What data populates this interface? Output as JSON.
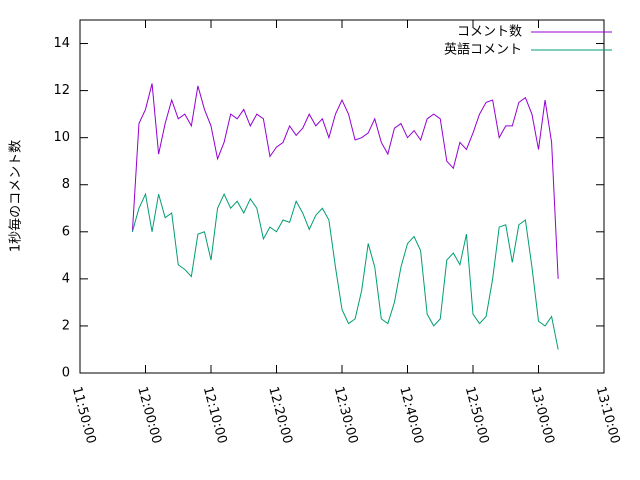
{
  "chart_data": {
    "type": "line",
    "y_label": "1秒毎のコメント数",
    "x": [
      "11:58:00",
      "11:59:00",
      "12:00:00",
      "12:01:00",
      "12:02:00",
      "12:03:00",
      "12:04:00",
      "12:05:00",
      "12:06:00",
      "12:07:00",
      "12:08:00",
      "12:09:00",
      "12:10:00",
      "12:11:00",
      "12:12:00",
      "12:13:00",
      "12:14:00",
      "12:15:00",
      "12:16:00",
      "12:17:00",
      "12:18:00",
      "12:19:00",
      "12:20:00",
      "12:21:00",
      "12:22:00",
      "12:23:00",
      "12:24:00",
      "12:25:00",
      "12:26:00",
      "12:27:00",
      "12:28:00",
      "12:29:00",
      "12:30:00",
      "12:31:00",
      "12:32:00",
      "12:33:00",
      "12:34:00",
      "12:35:00",
      "12:36:00",
      "12:37:00",
      "12:38:00",
      "12:39:00",
      "12:40:00",
      "12:41:00",
      "12:42:00",
      "12:43:00",
      "12:44:00",
      "12:45:00",
      "12:46:00",
      "12:47:00",
      "12:48:00",
      "12:49:00",
      "12:50:00",
      "12:51:00",
      "12:52:00",
      "12:53:00",
      "12:54:00",
      "12:55:00",
      "12:56:00",
      "12:57:00",
      "12:58:00",
      "12:59:00",
      "13:00:00",
      "13:01:00",
      "13:02:00",
      "13:03:00"
    ],
    "series": [
      {
        "name": "コメント数",
        "color": "#9400d3",
        "values": [
          6.0,
          10.6,
          11.2,
          12.3,
          9.3,
          10.6,
          11.6,
          10.8,
          11.0,
          10.5,
          12.2,
          11.2,
          10.5,
          9.1,
          9.8,
          11.0,
          10.8,
          11.2,
          10.5,
          11.0,
          10.8,
          9.2,
          9.6,
          9.8,
          10.5,
          10.1,
          10.4,
          11.0,
          10.5,
          10.8,
          10.0,
          11.0,
          11.6,
          11.0,
          9.9,
          10.0,
          10.2,
          10.8,
          9.8,
          9.3,
          10.4,
          10.6,
          10.0,
          10.3,
          9.9,
          10.8,
          11.0,
          10.8,
          9.0,
          8.7,
          9.8,
          9.5,
          10.2,
          11.0,
          11.5,
          11.6,
          10.0,
          10.5,
          10.5,
          11.5,
          11.7,
          11.0,
          9.5,
          11.6,
          9.8,
          4.0
        ]
      },
      {
        "name": "英語コメント",
        "color": "#009e73",
        "values": [
          6.0,
          7.0,
          7.6,
          6.0,
          7.6,
          6.6,
          6.8,
          4.6,
          4.4,
          4.1,
          5.9,
          6.0,
          4.8,
          7.0,
          7.6,
          7.0,
          7.3,
          6.8,
          7.4,
          7.0,
          5.7,
          6.2,
          6.0,
          6.5,
          6.4,
          7.3,
          6.8,
          6.1,
          6.7,
          7.0,
          6.5,
          4.5,
          2.7,
          2.1,
          2.3,
          3.5,
          5.5,
          4.5,
          2.3,
          2.1,
          3.0,
          4.5,
          5.5,
          5.8,
          5.2,
          2.5,
          2.0,
          2.3,
          4.8,
          5.1,
          4.6,
          5.9,
          2.5,
          2.1,
          2.4,
          4.0,
          6.2,
          6.3,
          4.7,
          6.3,
          6.5,
          4.5,
          2.2,
          2.0,
          2.4,
          1.0
        ]
      }
    ],
    "xlim": [
      "11:50:00",
      "13:10:00"
    ],
    "xticks": [
      "11:50:00",
      "12:00:00",
      "12:10:00",
      "12:20:00",
      "12:30:00",
      "12:40:00",
      "12:50:00",
      "13:00:00",
      "13:10:00"
    ],
    "ylim": [
      0,
      15
    ],
    "yticks": [
      0,
      2,
      4,
      6,
      8,
      10,
      12,
      14
    ],
    "legend": "top-right",
    "grid": false
  }
}
